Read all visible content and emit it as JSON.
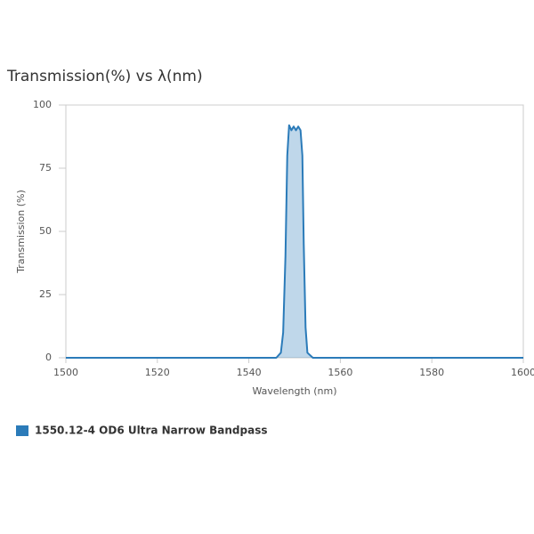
{
  "chart_data": {
    "type": "area",
    "title": "Transmission(%) vs λ(nm)",
    "x_label": "Wavelength (nm)",
    "y_label": "Transmission (%)",
    "x": [
      1500,
      1540,
      1546,
      1547,
      1547.5,
      1548,
      1548.4,
      1548.8,
      1549.3,
      1549.8,
      1550.3,
      1550.8,
      1551.3,
      1551.7,
      1552,
      1552.4,
      1552.8,
      1554,
      1560,
      1600
    ],
    "series": [
      {
        "name": "1550.12-4 OD6 Ultra Narrow Bandpass",
        "color": "#2b7bb9",
        "values": [
          0,
          0,
          0,
          2,
          10,
          40,
          80,
          92,
          90,
          91.5,
          90,
          91.5,
          90,
          80,
          45,
          12,
          2,
          0,
          0,
          0
        ]
      }
    ],
    "xlim": [
      1500,
      1600
    ],
    "xticks": [
      1500,
      1520,
      1540,
      1560,
      1580,
      1600
    ],
    "ylim": [
      0,
      100
    ],
    "yticks": [
      0,
      25,
      50,
      75,
      100
    ],
    "grid": false
  }
}
